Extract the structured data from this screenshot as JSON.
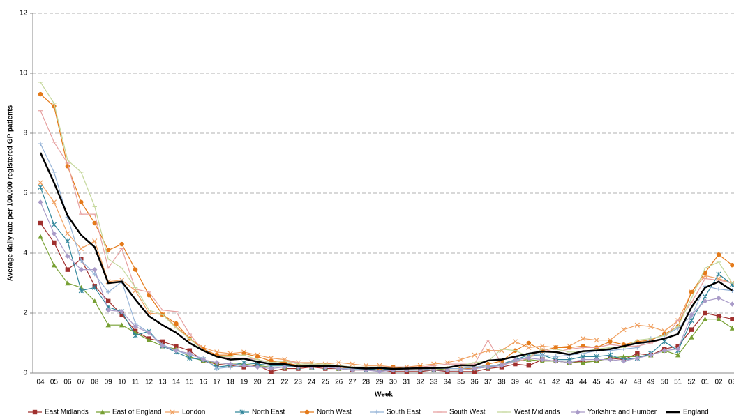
{
  "chart_data": {
    "type": "line",
    "y_label": "Average daily rate per 100,000 registered GP patients",
    "x_label": "Week",
    "categories": [
      "04",
      "05",
      "06",
      "07",
      "08",
      "09",
      "10",
      "11",
      "12",
      "13",
      "14",
      "15",
      "16",
      "17",
      "18",
      "19",
      "20",
      "21",
      "22",
      "23",
      "24",
      "25",
      "26",
      "27",
      "28",
      "29",
      "30",
      "31",
      "32",
      "33",
      "34",
      "35",
      "36",
      "37",
      "38",
      "39",
      "40",
      "41",
      "42",
      "43",
      "44",
      "45",
      "46",
      "47",
      "48",
      "49",
      "50",
      "51",
      "52",
      "01",
      "02",
      "03"
    ],
    "ylim": [
      0,
      12
    ],
    "yticks": [
      0,
      2,
      4,
      6,
      8,
      10,
      12
    ],
    "grid": true,
    "series": [
      {
        "name": "East Midlands",
        "color": "#a0302e",
        "marker": "square",
        "values": [
          5.0,
          4.35,
          3.45,
          3.8,
          2.9,
          2.4,
          1.95,
          1.4,
          1.15,
          1.05,
          0.9,
          0.75,
          0.4,
          0.3,
          0.25,
          0.2,
          0.25,
          0.05,
          0.15,
          0.15,
          0.2,
          0.15,
          0.15,
          0.1,
          0.1,
          0.1,
          0.05,
          0.05,
          0.05,
          0.1,
          0.05,
          0.05,
          0.05,
          0.15,
          0.2,
          0.3,
          0.25,
          0.45,
          0.4,
          0.35,
          0.4,
          0.4,
          0.5,
          0.45,
          0.65,
          0.6,
          0.8,
          0.9,
          1.45,
          2.0,
          1.9,
          1.8
        ]
      },
      {
        "name": "East of England",
        "color": "#77a033",
        "marker": "triangle",
        "values": [
          4.55,
          3.6,
          3.0,
          2.85,
          2.4,
          1.6,
          1.6,
          1.35,
          1.1,
          0.9,
          0.8,
          0.55,
          0.4,
          0.35,
          0.3,
          0.3,
          0.25,
          0.2,
          0.2,
          0.2,
          0.2,
          0.2,
          0.15,
          0.15,
          0.1,
          0.1,
          0.1,
          0.1,
          0.1,
          0.1,
          0.15,
          0.15,
          0.2,
          0.2,
          0.3,
          0.4,
          0.45,
          0.4,
          0.4,
          0.35,
          0.35,
          0.4,
          0.5,
          0.55,
          0.55,
          0.6,
          0.75,
          0.6,
          1.2,
          1.8,
          1.8,
          1.5
        ]
      },
      {
        "name": "London",
        "color": "#f0a060",
        "marker": "cross",
        "values": [
          6.35,
          5.7,
          4.65,
          4.15,
          4.4,
          3.05,
          3.1,
          2.75,
          2.0,
          1.95,
          1.55,
          1.15,
          0.85,
          0.7,
          0.65,
          0.7,
          0.6,
          0.5,
          0.45,
          0.35,
          0.35,
          0.3,
          0.35,
          0.3,
          0.25,
          0.25,
          0.2,
          0.2,
          0.25,
          0.3,
          0.35,
          0.45,
          0.6,
          0.75,
          0.75,
          1.05,
          0.85,
          0.9,
          0.85,
          0.9,
          1.15,
          1.1,
          1.1,
          1.45,
          1.6,
          1.55,
          1.4,
          1.75,
          2.7,
          3.25,
          3.15,
          3.0
        ]
      },
      {
        "name": "North East",
        "color": "#31869b",
        "marker": "star",
        "values": [
          6.2,
          4.95,
          4.4,
          2.75,
          2.85,
          2.2,
          2.05,
          1.25,
          1.4,
          0.9,
          0.7,
          0.5,
          0.45,
          0.2,
          0.25,
          0.35,
          0.3,
          0.25,
          0.25,
          0.2,
          0.2,
          0.2,
          0.2,
          0.15,
          0.1,
          0.15,
          0.1,
          0.1,
          0.1,
          0.1,
          0.1,
          0.1,
          0.15,
          0.2,
          0.3,
          0.45,
          0.6,
          0.6,
          0.45,
          0.45,
          0.55,
          0.55,
          0.6,
          0.45,
          0.5,
          0.65,
          1.05,
          0.75,
          1.75,
          2.55,
          3.3,
          2.95
        ]
      },
      {
        "name": "North West",
        "color": "#e47a1a",
        "marker": "circle",
        "values": [
          9.3,
          8.9,
          6.9,
          5.7,
          5.0,
          4.1,
          4.3,
          3.45,
          2.6,
          1.95,
          1.65,
          1.15,
          0.8,
          0.6,
          0.6,
          0.65,
          0.55,
          0.4,
          0.35,
          0.25,
          0.25,
          0.25,
          0.2,
          0.15,
          0.15,
          0.15,
          0.2,
          0.15,
          0.2,
          0.15,
          0.15,
          0.15,
          0.15,
          0.3,
          0.4,
          0.75,
          1.0,
          0.75,
          0.85,
          0.85,
          0.9,
          0.85,
          1.05,
          0.95,
          1.05,
          1.1,
          1.3,
          1.55,
          2.7,
          3.35,
          3.95,
          3.6
        ]
      },
      {
        "name": "South East",
        "color": "#95b3d7",
        "marker": "plus",
        "values": [
          7.65,
          6.7,
          5.2,
          3.75,
          3.3,
          2.7,
          3.05,
          1.65,
          1.35,
          0.95,
          0.75,
          0.6,
          0.5,
          0.15,
          0.2,
          0.25,
          0.2,
          0.2,
          0.2,
          0.2,
          0.2,
          0.2,
          0.15,
          0.15,
          0.1,
          0.1,
          0.1,
          0.1,
          0.1,
          0.15,
          0.15,
          0.15,
          0.2,
          0.25,
          0.25,
          0.4,
          0.55,
          0.6,
          0.55,
          0.6,
          0.65,
          0.75,
          0.75,
          0.8,
          0.85,
          1.15,
          1.25,
          1.5,
          1.9,
          2.9,
          2.8,
          2.75
        ]
      },
      {
        "name": "South West",
        "color": "#e6a0a0",
        "marker": "dash",
        "values": [
          8.75,
          7.7,
          7.0,
          5.3,
          5.3,
          3.5,
          4.15,
          2.8,
          2.7,
          2.1,
          2.05,
          1.3,
          0.75,
          0.55,
          0.5,
          0.5,
          0.45,
          0.35,
          0.4,
          0.35,
          0.3,
          0.25,
          0.25,
          0.2,
          0.2,
          0.2,
          0.2,
          0.2,
          0.2,
          0.25,
          0.3,
          0.3,
          0.3,
          1.1,
          0.3,
          0.35,
          0.5,
          0.8,
          0.7,
          0.8,
          0.85,
          0.85,
          0.95,
          0.9,
          0.9,
          1.0,
          1.15,
          1.75,
          2.35,
          3.15,
          3.1,
          3.0
        ]
      },
      {
        "name": "West Midlands",
        "color": "#c4d79b",
        "marker": "dash",
        "values": [
          9.7,
          9.0,
          7.1,
          6.7,
          5.55,
          3.8,
          3.5,
          2.85,
          2.1,
          1.95,
          1.5,
          1.15,
          0.75,
          0.55,
          0.55,
          0.6,
          0.45,
          0.35,
          0.4,
          0.3,
          0.3,
          0.3,
          0.25,
          0.2,
          0.2,
          0.2,
          0.15,
          0.15,
          0.15,
          0.15,
          0.2,
          0.25,
          0.35,
          0.4,
          0.8,
          0.75,
          0.55,
          0.8,
          0.8,
          0.7,
          0.7,
          0.8,
          0.85,
          0.85,
          1.1,
          1.15,
          1.25,
          1.55,
          2.5,
          3.5,
          3.7,
          3.0
        ]
      },
      {
        "name": "Yorkshire and Humber",
        "color": "#a99bc8",
        "marker": "diamond",
        "values": [
          5.7,
          4.65,
          3.9,
          3.45,
          3.45,
          2.1,
          2.05,
          1.55,
          1.35,
          0.9,
          0.75,
          0.65,
          0.45,
          0.35,
          0.3,
          0.25,
          0.2,
          0.15,
          0.2,
          0.2,
          0.2,
          0.2,
          0.15,
          0.1,
          0.1,
          0.05,
          0.1,
          0.1,
          0.1,
          0.1,
          0.1,
          0.1,
          0.15,
          0.2,
          0.25,
          0.45,
          0.5,
          0.45,
          0.4,
          0.35,
          0.45,
          0.45,
          0.45,
          0.4,
          0.5,
          0.6,
          0.75,
          0.8,
          1.95,
          2.4,
          2.5,
          2.3
        ]
      },
      {
        "name": "England",
        "color": "#000000",
        "width": 2.5,
        "values": [
          7.35,
          6.35,
          5.25,
          4.6,
          4.2,
          3.0,
          3.05,
          2.45,
          1.9,
          1.6,
          1.35,
          1.0,
          0.75,
          0.55,
          0.45,
          0.48,
          0.38,
          0.3,
          0.3,
          0.22,
          0.23,
          0.24,
          0.22,
          0.18,
          0.15,
          0.17,
          0.14,
          0.15,
          0.16,
          0.17,
          0.18,
          0.26,
          0.25,
          0.42,
          0.45,
          0.55,
          0.65,
          0.72,
          0.7,
          0.62,
          0.73,
          0.75,
          0.8,
          0.9,
          1.0,
          1.05,
          1.15,
          1.3,
          2.2,
          2.85,
          3.05,
          2.75
        ]
      }
    ]
  }
}
